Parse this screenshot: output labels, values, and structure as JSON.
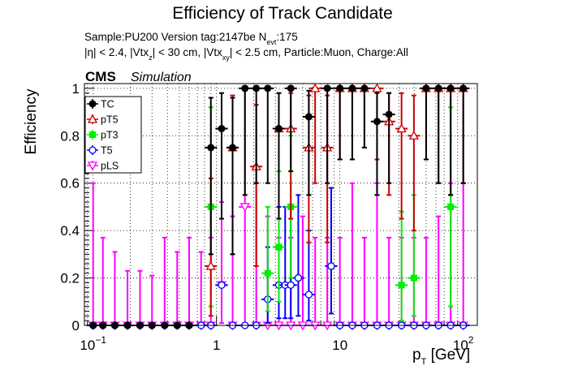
{
  "header": {
    "title": "Efficiency of Track Candidate",
    "sample_line": {
      "main": "Sample:PU200   Version tag:2147be  N",
      "sub": "evt",
      "tail": ":175"
    },
    "cuts_line": {
      "p1": "|η| < 2.4, |Vtx",
      "s1": "z",
      "p2": "| < 30 cm, |Vtx",
      "s2": "xy",
      "p3": "| < 2.5 cm, Particle:Muon, Charge:All"
    },
    "cms": "CMS",
    "simulation": "Simulation"
  },
  "chart_data": {
    "type": "scatter",
    "title": "Efficiency of Track Candidate",
    "xlabel_main": "p",
    "xlabel_sub": "T",
    "xlabel_tail": " [GeV]",
    "ylabel": "Efficiency",
    "x_scale": "log",
    "xlim": [
      0.085,
      130
    ],
    "ylim": [
      0,
      1.02
    ],
    "grid": true,
    "legend_position": "top-left",
    "x_ticks": [
      {
        "value": 0.1,
        "base": "10",
        "exp": "−1"
      },
      {
        "value": 1,
        "base": "1",
        "exp": ""
      },
      {
        "value": 10,
        "base": "10",
        "exp": ""
      },
      {
        "value": 100,
        "base": "10",
        "exp": "2"
      }
    ],
    "y_ticks": [
      {
        "value": 0,
        "label": "0"
      },
      {
        "value": 0.2,
        "label": "0.2"
      },
      {
        "value": 0.4,
        "label": "0.4"
      },
      {
        "value": 0.6,
        "label": "0.6"
      },
      {
        "value": 0.8,
        "label": "0.8"
      },
      {
        "value": 1.0,
        "label": "1"
      }
    ],
    "series": [
      {
        "name": "pLS",
        "color": "#ff00ff",
        "marker": "triangle-down-open",
        "points": [
          {
            "x": 0.1,
            "y": 0,
            "lo": 0,
            "hi": 0.6
          },
          {
            "x": 0.12,
            "y": 0,
            "lo": 0,
            "hi": 0.37
          },
          {
            "x": 0.15,
            "y": 0,
            "lo": 0,
            "hi": 0.31
          },
          {
            "x": 0.19,
            "y": 0,
            "lo": 0,
            "hi": 0.23
          },
          {
            "x": 0.24,
            "y": 0,
            "lo": 0,
            "hi": 0.23
          },
          {
            "x": 0.3,
            "y": 0,
            "lo": 0,
            "hi": 0.21
          },
          {
            "x": 0.38,
            "y": 0,
            "lo": 0,
            "hi": 0.37
          },
          {
            "x": 0.48,
            "y": 0,
            "lo": 0,
            "hi": 0.31
          },
          {
            "x": 0.6,
            "y": 0,
            "lo": 0,
            "hi": 0.37
          },
          {
            "x": 0.75,
            "y": 0,
            "lo": 0,
            "hi": 0.31
          },
          {
            "x": 0.9,
            "y": 0,
            "lo": 0,
            "hi": 0.37
          },
          {
            "x": 1.1,
            "y": 0.17,
            "lo": 0.01,
            "hi": 0.52
          },
          {
            "x": 1.35,
            "y": 0,
            "lo": 0,
            "hi": 0.46
          },
          {
            "x": 1.7,
            "y": 0.5,
            "lo": 0.01,
            "hi": 0.99
          },
          {
            "x": 2.1,
            "y": 0,
            "lo": 0,
            "hi": 0.6
          },
          {
            "x": 2.6,
            "y": 0,
            "lo": 0,
            "hi": 0.46
          },
          {
            "x": 3.2,
            "y": 0,
            "lo": 0,
            "hi": 0.37
          },
          {
            "x": 4.0,
            "y": 0,
            "lo": 0,
            "hi": 0.37
          },
          {
            "x": 5.0,
            "y": 0,
            "lo": 0,
            "hi": 0.46
          },
          {
            "x": 6.3,
            "y": 0,
            "lo": 0,
            "hi": 0.37
          },
          {
            "x": 7.9,
            "y": 0,
            "lo": 0,
            "hi": 0.37
          },
          {
            "x": 10,
            "y": 0,
            "lo": 0,
            "hi": 0.37
          },
          {
            "x": 12.6,
            "y": 0,
            "lo": 0,
            "hi": 0.6
          },
          {
            "x": 15.8,
            "y": 0,
            "lo": 0,
            "hi": 0.37
          },
          {
            "x": 20,
            "y": 0,
            "lo": 0,
            "hi": 0.6
          },
          {
            "x": 25,
            "y": 0,
            "lo": 0,
            "hi": 0.37
          },
          {
            "x": 31.6,
            "y": 0,
            "lo": 0,
            "hi": 0.37
          },
          {
            "x": 39.8,
            "y": 0,
            "lo": 0,
            "hi": 0.37
          },
          {
            "x": 50,
            "y": 0,
            "lo": 0,
            "hi": 0.37
          },
          {
            "x": 63,
            "y": 0,
            "lo": 0,
            "hi": 0.46
          },
          {
            "x": 79,
            "y": 0,
            "lo": 0,
            "hi": 0.6
          },
          {
            "x": 100,
            "y": 0,
            "lo": 0,
            "hi": 0.6
          }
        ]
      },
      {
        "name": "T5",
        "color": "#0000ff",
        "marker": "circle-open",
        "points": [
          {
            "x": 0.1,
            "y": 0
          },
          {
            "x": 0.12,
            "y": 0
          },
          {
            "x": 0.15,
            "y": 0
          },
          {
            "x": 0.19,
            "y": 0
          },
          {
            "x": 0.24,
            "y": 0
          },
          {
            "x": 0.3,
            "y": 0
          },
          {
            "x": 0.38,
            "y": 0
          },
          {
            "x": 0.48,
            "y": 0
          },
          {
            "x": 0.6,
            "y": 0
          },
          {
            "x": 0.75,
            "y": 0
          },
          {
            "x": 0.9,
            "y": 0
          },
          {
            "x": 1.1,
            "y": 0.17
          },
          {
            "x": 1.35,
            "y": 0
          },
          {
            "x": 1.7,
            "y": 0
          },
          {
            "x": 2.1,
            "y": 0
          },
          {
            "x": 2.6,
            "y": 0.11,
            "lo": 0.01,
            "hi": 0.33
          },
          {
            "x": 3.2,
            "y": 0.17,
            "lo": 0.03,
            "hi": 0.5
          },
          {
            "x": 3.6,
            "y": 0.17,
            "lo": 0.03,
            "hi": 0.5
          },
          {
            "x": 4.0,
            "y": 0.17,
            "lo": 0.03,
            "hi": 0.5
          },
          {
            "x": 4.6,
            "y": 0.2,
            "lo": 0.04,
            "hi": 0.55
          },
          {
            "x": 5.6,
            "y": 0.13,
            "lo": 0.02,
            "hi": 0.4
          },
          {
            "x": 8.5,
            "y": 0.25,
            "lo": 0.05,
            "hi": 0.58
          },
          {
            "x": 10,
            "y": 0
          },
          {
            "x": 12.6,
            "y": 0
          },
          {
            "x": 15.8,
            "y": 0
          },
          {
            "x": 20,
            "y": 0
          },
          {
            "x": 25,
            "y": 0
          },
          {
            "x": 31.6,
            "y": 0
          },
          {
            "x": 39.8,
            "y": 0
          },
          {
            "x": 50,
            "y": 0
          },
          {
            "x": 63,
            "y": 0
          },
          {
            "x": 79,
            "y": 0
          },
          {
            "x": 100,
            "y": 0
          }
        ]
      },
      {
        "name": "pT3",
        "color": "#00ee00",
        "marker": "square-full",
        "points": [
          {
            "x": 0.9,
            "y": 0.5,
            "lo": 0.08,
            "hi": 0.92
          },
          {
            "x": 2.6,
            "y": 0.22,
            "lo": 0.06,
            "hi": 0.5
          },
          {
            "x": 3.2,
            "y": 0.33,
            "lo": 0.1,
            "hi": 0.65
          },
          {
            "x": 4.0,
            "y": 0.5,
            "lo": 0.2,
            "hi": 0.8
          },
          {
            "x": 31.6,
            "y": 0.17,
            "lo": 0.02,
            "hi": 0.48
          },
          {
            "x": 39.8,
            "y": 0.2,
            "lo": 0.04,
            "hi": 0.55
          },
          {
            "x": 79,
            "y": 0.5,
            "lo": 0.08,
            "hi": 0.92
          }
        ]
      },
      {
        "name": "pT5",
        "color": "#cc0000",
        "marker": "triangle-up-open",
        "points": [
          {
            "x": 0.9,
            "y": 0.25,
            "lo": 0.04,
            "hi": 0.62
          },
          {
            "x": 1.35,
            "y": 0.75,
            "lo": 0.3,
            "hi": 0.97
          },
          {
            "x": 2.1,
            "y": 0.67,
            "lo": 0.25,
            "hi": 0.93
          },
          {
            "x": 3.2,
            "y": 0.83,
            "lo": 0.45,
            "hi": 0.98
          },
          {
            "x": 4.0,
            "y": 0.83,
            "lo": 0.45,
            "hi": 0.98
          },
          {
            "x": 5.6,
            "y": 0.75,
            "lo": 0.35,
            "hi": 0.97
          },
          {
            "x": 6.3,
            "y": 1.0,
            "lo": 0.6,
            "hi": 1.0
          },
          {
            "x": 7.9,
            "y": 0.75,
            "lo": 0.35,
            "hi": 0.97
          },
          {
            "x": 10,
            "y": 1.0,
            "lo": 0.7,
            "hi": 1.0
          },
          {
            "x": 12.6,
            "y": 1.0,
            "lo": 0.7,
            "hi": 1.0
          },
          {
            "x": 15.8,
            "y": 1.0,
            "lo": 0.75,
            "hi": 1.0
          },
          {
            "x": 20,
            "y": 1.0,
            "lo": 0.7,
            "hi": 1.0
          },
          {
            "x": 25,
            "y": 0.86,
            "lo": 0.55,
            "hi": 0.98
          },
          {
            "x": 31.6,
            "y": 0.83,
            "lo": 0.45,
            "hi": 0.98
          },
          {
            "x": 39.8,
            "y": 0.8,
            "lo": 0.4,
            "hi": 0.97
          },
          {
            "x": 50,
            "y": 1.0,
            "lo": 0.7,
            "hi": 1.0
          },
          {
            "x": 63,
            "y": 1.0,
            "lo": 0.6,
            "hi": 1.0
          },
          {
            "x": 79,
            "y": 1.0,
            "lo": 0.55,
            "hi": 1.0
          },
          {
            "x": 100,
            "y": 1.0,
            "lo": 0.6,
            "hi": 1.0
          }
        ]
      },
      {
        "name": "TC",
        "color": "#000000",
        "marker": "circle-full",
        "points": [
          {
            "x": 0.1,
            "y": 0
          },
          {
            "x": 0.12,
            "y": 0
          },
          {
            "x": 0.15,
            "y": 0
          },
          {
            "x": 0.19,
            "y": 0
          },
          {
            "x": 0.24,
            "y": 0
          },
          {
            "x": 0.3,
            "y": 0
          },
          {
            "x": 0.38,
            "y": 0
          },
          {
            "x": 0.48,
            "y": 0
          },
          {
            "x": 0.6,
            "y": 0
          },
          {
            "x": 0.9,
            "y": 0.75,
            "lo": 0.3,
            "hi": 0.96
          },
          {
            "x": 1.1,
            "y": 0.83,
            "lo": 0.45,
            "hi": 0.98
          },
          {
            "x": 1.35,
            "y": 0.75,
            "lo": 0.3,
            "hi": 0.96
          },
          {
            "x": 1.7,
            "y": 1.0,
            "lo": 0.55,
            "hi": 1.0
          },
          {
            "x": 2.1,
            "y": 1.0,
            "lo": 0.6,
            "hi": 1.0
          },
          {
            "x": 2.6,
            "y": 1.0,
            "lo": 0.6,
            "hi": 1.0
          },
          {
            "x": 3.2,
            "y": 0.83,
            "lo": 0.45,
            "hi": 0.98
          },
          {
            "x": 4.0,
            "y": 1.0,
            "lo": 0.65,
            "hi": 1.0
          },
          {
            "x": 5.6,
            "y": 0.88,
            "lo": 0.55,
            "hi": 0.99
          },
          {
            "x": 7.9,
            "y": 1.0,
            "lo": 0.6,
            "hi": 1.0
          },
          {
            "x": 10,
            "y": 1.0,
            "lo": 0.7,
            "hi": 1.0
          },
          {
            "x": 12.6,
            "y": 1.0,
            "lo": 0.7,
            "hi": 1.0
          },
          {
            "x": 15.8,
            "y": 1.0,
            "lo": 0.75,
            "hi": 1.0
          },
          {
            "x": 20,
            "y": 0.86,
            "lo": 0.55,
            "hi": 0.98
          },
          {
            "x": 25,
            "y": 0.89,
            "lo": 0.6,
            "hi": 0.98
          },
          {
            "x": 50,
            "y": 1.0,
            "lo": 0.7,
            "hi": 1.0
          },
          {
            "x": 63,
            "y": 1.0,
            "lo": 0.6,
            "hi": 1.0
          },
          {
            "x": 79,
            "y": 1.0,
            "lo": 0.55,
            "hi": 1.0
          },
          {
            "x": 100,
            "y": 1.0,
            "lo": 0.6,
            "hi": 1.0
          }
        ]
      }
    ],
    "legend_order": [
      "TC",
      "pT5",
      "pT3",
      "T5",
      "pLS"
    ]
  }
}
